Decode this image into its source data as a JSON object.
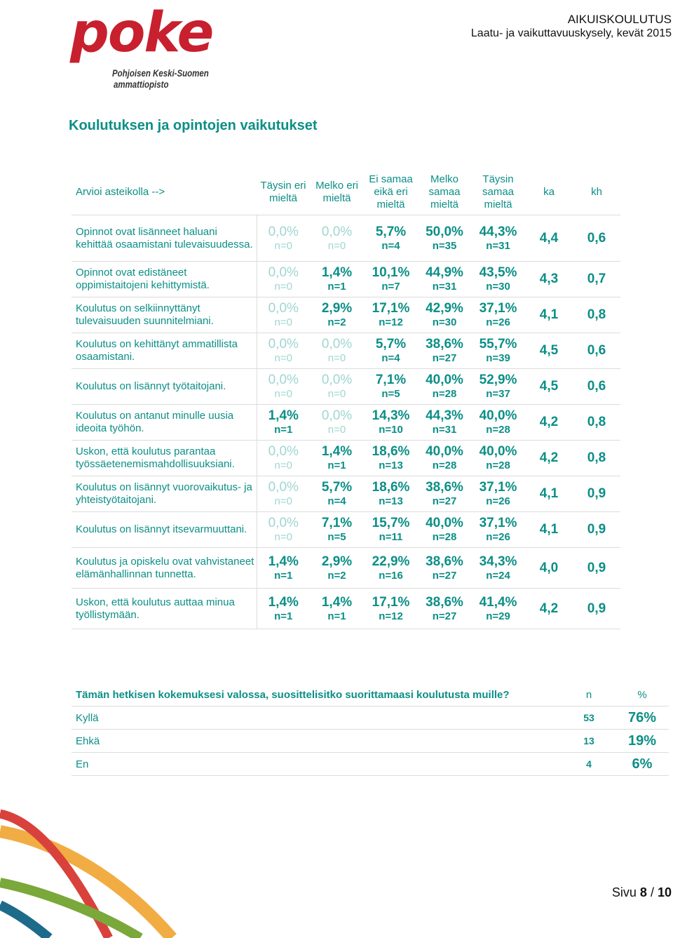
{
  "logo": {
    "word": "poke",
    "sub1": "Pohjoisen Keski-Suomen",
    "sub2": "ammattiopisto"
  },
  "header": {
    "line1": "AIKUISKOULUTUS",
    "line2": "Laatu- ja vaikuttavuuskysely, kevät 2015"
  },
  "section_title": "Koulutuksen ja opintojen vaikutukset",
  "colors": {
    "accent": "#0b8f86",
    "accent_light": "#9fd6d1",
    "logo_red": "#c8202e"
  },
  "survey": {
    "headers": {
      "question": "Arvioi asteikolla -->",
      "c1": "Täysin eri mieltä",
      "c2": "Melko eri mieltä",
      "c3": "Ei samaa eikä eri mieltä",
      "c4": "Melko samaa mieltä",
      "c5": "Täysin samaa mieltä",
      "ka": "ka",
      "kh": "kh"
    },
    "rows": [
      {
        "q": "Opinnot ovat lisänneet haluani kehittää osaamistani tulevaisuudessa.",
        "c1": {
          "pct": "0,0%",
          "n": "n=0"
        },
        "c2": {
          "pct": "0,0%",
          "n": "n=0"
        },
        "c3": {
          "pct": "5,7%",
          "n": "n=4"
        },
        "c4": {
          "pct": "50,0%",
          "n": "n=35"
        },
        "c5": {
          "pct": "44,3%",
          "n": "n=31"
        },
        "ka": "4,4",
        "kh": "0,6"
      },
      {
        "q": "Opinnot ovat edistäneet oppimistaitojeni kehittymistä.",
        "c1": {
          "pct": "0,0%",
          "n": "n=0"
        },
        "c2": {
          "pct": "1,4%",
          "n": "n=1"
        },
        "c3": {
          "pct": "10,1%",
          "n": "n=7"
        },
        "c4": {
          "pct": "44,9%",
          "n": "n=31"
        },
        "c5": {
          "pct": "43,5%",
          "n": "n=30"
        },
        "ka": "4,3",
        "kh": "0,7"
      },
      {
        "q": "Koulutus on selkiinnyttänyt tulevaisuuden suunnitelmiani.",
        "c1": {
          "pct": "0,0%",
          "n": "n=0"
        },
        "c2": {
          "pct": "2,9%",
          "n": "n=2"
        },
        "c3": {
          "pct": "17,1%",
          "n": "n=12"
        },
        "c4": {
          "pct": "42,9%",
          "n": "n=30"
        },
        "c5": {
          "pct": "37,1%",
          "n": "n=26"
        },
        "ka": "4,1",
        "kh": "0,8"
      },
      {
        "q": "Koulutus on kehittänyt ammatillista osaamistani.",
        "c1": {
          "pct": "0,0%",
          "n": "n=0"
        },
        "c2": {
          "pct": "0,0%",
          "n": "n=0"
        },
        "c3": {
          "pct": "5,7%",
          "n": "n=4"
        },
        "c4": {
          "pct": "38,6%",
          "n": "n=27"
        },
        "c5": {
          "pct": "55,7%",
          "n": "n=39"
        },
        "ka": "4,5",
        "kh": "0,6"
      },
      {
        "q": "Koulutus on lisännyt työtaitojani.",
        "c1": {
          "pct": "0,0%",
          "n": "n=0"
        },
        "c2": {
          "pct": "0,0%",
          "n": "n=0"
        },
        "c3": {
          "pct": "7,1%",
          "n": "n=5"
        },
        "c4": {
          "pct": "40,0%",
          "n": "n=28"
        },
        "c5": {
          "pct": "52,9%",
          "n": "n=37"
        },
        "ka": "4,5",
        "kh": "0,6"
      },
      {
        "q": "Koulutus on antanut minulle uusia ideoita työhön.",
        "c1": {
          "pct": "1,4%",
          "n": "n=1"
        },
        "c2": {
          "pct": "0,0%",
          "n": "n=0"
        },
        "c3": {
          "pct": "14,3%",
          "n": "n=10"
        },
        "c4": {
          "pct": "44,3%",
          "n": "n=31"
        },
        "c5": {
          "pct": "40,0%",
          "n": "n=28"
        },
        "ka": "4,2",
        "kh": "0,8"
      },
      {
        "q": "Uskon, että koulutus parantaa työssäetenemismahdollisuuksiani.",
        "c1": {
          "pct": "0,0%",
          "n": "n=0"
        },
        "c2": {
          "pct": "1,4%",
          "n": "n=1"
        },
        "c3": {
          "pct": "18,6%",
          "n": "n=13"
        },
        "c4": {
          "pct": "40,0%",
          "n": "n=28"
        },
        "c5": {
          "pct": "40,0%",
          "n": "n=28"
        },
        "ka": "4,2",
        "kh": "0,8"
      },
      {
        "q": "Koulutus on lisännyt vuorovaikutus- ja yhteistyötaitojani.",
        "c1": {
          "pct": "0,0%",
          "n": "n=0"
        },
        "c2": {
          "pct": "5,7%",
          "n": "n=4"
        },
        "c3": {
          "pct": "18,6%",
          "n": "n=13"
        },
        "c4": {
          "pct": "38,6%",
          "n": "n=27"
        },
        "c5": {
          "pct": "37,1%",
          "n": "n=26"
        },
        "ka": "4,1",
        "kh": "0,9"
      },
      {
        "q": "Koulutus on lisännyt itsevarmuuttani.",
        "c1": {
          "pct": "0,0%",
          "n": "n=0"
        },
        "c2": {
          "pct": "7,1%",
          "n": "n=5"
        },
        "c3": {
          "pct": "15,7%",
          "n": "n=11"
        },
        "c4": {
          "pct": "40,0%",
          "n": "n=28"
        },
        "c5": {
          "pct": "37,1%",
          "n": "n=26"
        },
        "ka": "4,1",
        "kh": "0,9"
      },
      {
        "q": "Koulutus ja opiskelu ovat vahvistaneet elämänhallinnan tunnetta.",
        "c1": {
          "pct": "1,4%",
          "n": "n=1"
        },
        "c2": {
          "pct": "2,9%",
          "n": "n=2"
        },
        "c3": {
          "pct": "22,9%",
          "n": "n=16"
        },
        "c4": {
          "pct": "38,6%",
          "n": "n=27"
        },
        "c5": {
          "pct": "34,3%",
          "n": "n=24"
        },
        "ka": "4,0",
        "kh": "0,9"
      },
      {
        "q": "Uskon, että koulutus auttaa minua työllistymään.",
        "c1": {
          "pct": "1,4%",
          "n": "n=1"
        },
        "c2": {
          "pct": "1,4%",
          "n": "n=1"
        },
        "c3": {
          "pct": "17,1%",
          "n": "n=12"
        },
        "c4": {
          "pct": "38,6%",
          "n": "n=27"
        },
        "c5": {
          "pct": "41,4%",
          "n": "n=29"
        },
        "ka": "4,2",
        "kh": "0,9"
      }
    ]
  },
  "recommend": {
    "question": "Tämän hetkisen kokemuksesi valossa, suosittelisitko suorittamaasi koulutusta muille?",
    "n_header": "n",
    "pct_header": "%",
    "rows": [
      {
        "label": "Kyllä",
        "n": "53",
        "pct": "76%"
      },
      {
        "label": "Ehkä",
        "n": "13",
        "pct": "19%"
      },
      {
        "label": "En",
        "n": "4",
        "pct": "6%"
      }
    ]
  },
  "footer": {
    "page_prefix": "Sivu",
    "page_current": "8",
    "page_sep": "/",
    "page_total": "10"
  }
}
